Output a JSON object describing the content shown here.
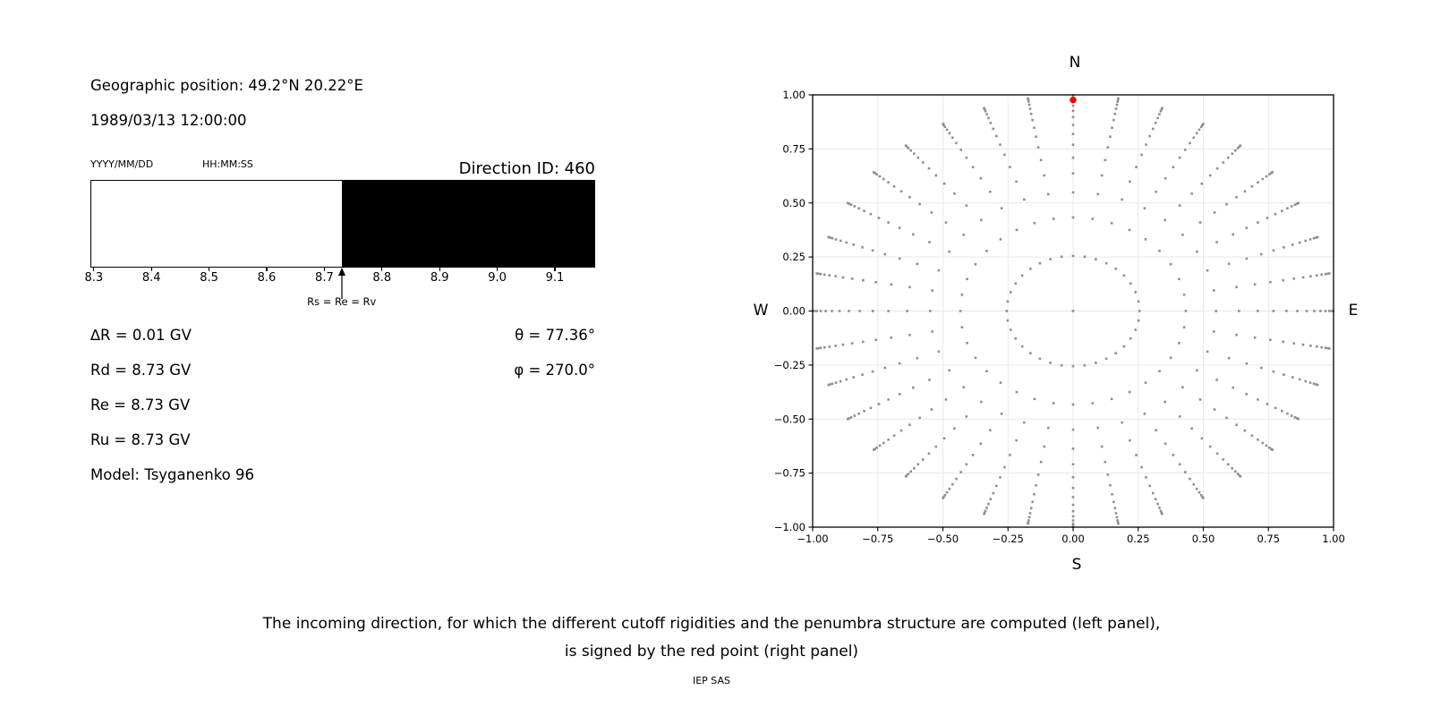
{
  "figure": {
    "header": {
      "geographic_position": "Geographic position: 49.2°N 20.22°E",
      "datetime": "1989/03/13 12:00:00",
      "date_format": "YYYY/MM/DD",
      "time_format": "HH:MM:SS",
      "direction_id": "Direction ID: 460"
    },
    "parameters": {
      "delta_r": "∆R = 0.01 GV",
      "rd": "Rd = 8.73 GV",
      "re": "Re = 8.73 GV",
      "ru": "Ru = 8.73 GV",
      "model": "Model: Tsyganenko 96",
      "theta": "θ = 77.36°",
      "phi": "φ = 270.0°"
    },
    "caption": {
      "line1": "The incoming direction, for which the different cutoff rigidities and the penumbra structure are computed (left panel),",
      "line2": "is signed by the red point (right panel)",
      "credit": "IEP SAS"
    }
  },
  "chart_data": [
    {
      "id": "penumbra-band",
      "type": "bar",
      "title": "",
      "xlabel": "",
      "xlim": [
        8.294,
        9.17
      ],
      "x_ticks": [
        8.3,
        8.4,
        8.5,
        8.6,
        8.7,
        8.8,
        8.9,
        9.0,
        9.1
      ],
      "x_tick_labels": [
        "8.3",
        "8.4",
        "8.5",
        "8.6",
        "8.7",
        "8.8",
        "8.9",
        "9.0",
        "9.1"
      ],
      "segments": [
        {
          "start": 8.294,
          "end": 8.73,
          "color": "#ffffff"
        },
        {
          "start": 8.73,
          "end": 9.17,
          "color": "#000000"
        }
      ],
      "annotation": {
        "text": "Rs = Re = Rv",
        "x": 8.73
      },
      "border_color": "#000000"
    },
    {
      "id": "direction-map",
      "type": "scatter",
      "title": "",
      "xlim": [
        -1.0,
        1.0
      ],
      "ylim": [
        -1.0,
        1.0
      ],
      "x_ticks": [
        -1.0,
        -0.75,
        -0.5,
        -0.25,
        0.0,
        0.25,
        0.5,
        0.75,
        1.0
      ],
      "x_tick_labels": [
        "−1.00",
        "−0.75",
        "−0.50",
        "−0.25",
        "0.00",
        "0.25",
        "0.50",
        "0.75",
        "1.00"
      ],
      "y_ticks": [
        -1.0,
        -0.75,
        -0.5,
        -0.25,
        0.0,
        0.25,
        0.5,
        0.75,
        1.0
      ],
      "y_tick_labels": [
        "−1.00",
        "−0.75",
        "−0.50",
        "−0.25",
        "0.00",
        "0.25",
        "0.50",
        "0.75",
        "1.00"
      ],
      "grid": true,
      "grid_color": "#e7e7e7",
      "compass": {
        "top": "N",
        "bottom": "S",
        "left": "W",
        "right": "E"
      },
      "dots": {
        "azimuth_step_deg": 10,
        "spoke_radii": [
          0.255,
          0.433,
          0.549,
          0.637,
          0.709,
          0.769,
          0.819,
          0.861,
          0.897,
          0.926,
          0.95,
          0.969,
          0.984,
          0.993,
          0.999
        ],
        "center_dot": true,
        "color": "#8f8f8f",
        "dot_size_px": 2.6
      },
      "red_point": {
        "x": 0.0,
        "y": 0.976,
        "color": "#f20000"
      }
    }
  ]
}
